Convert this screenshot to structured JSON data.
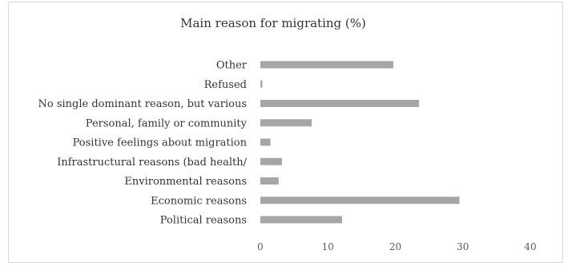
{
  "chart_data": {
    "type": "bar",
    "orientation": "horizontal",
    "title": "Main reason for migrating (%)",
    "xlabel": "",
    "ylabel": "",
    "categories": [
      "Other",
      "Refused",
      "No single dominant reason, but various",
      "Personal, family or community",
      "Positive feelings about migration",
      "Infrastructural reasons (bad health/",
      "Environmental reasons",
      "Economic reasons",
      "Political reasons"
    ],
    "values": [
      19.7,
      0.3,
      23.5,
      7.6,
      1.5,
      3.2,
      2.7,
      29.5,
      12.1
    ],
    "xlim": [
      0,
      40
    ],
    "ticks": [
      0,
      10,
      20,
      30,
      40
    ],
    "grid": false,
    "legend": "none",
    "bar_color": "#a6a6a6",
    "frame_color": "#d9d9d9"
  }
}
